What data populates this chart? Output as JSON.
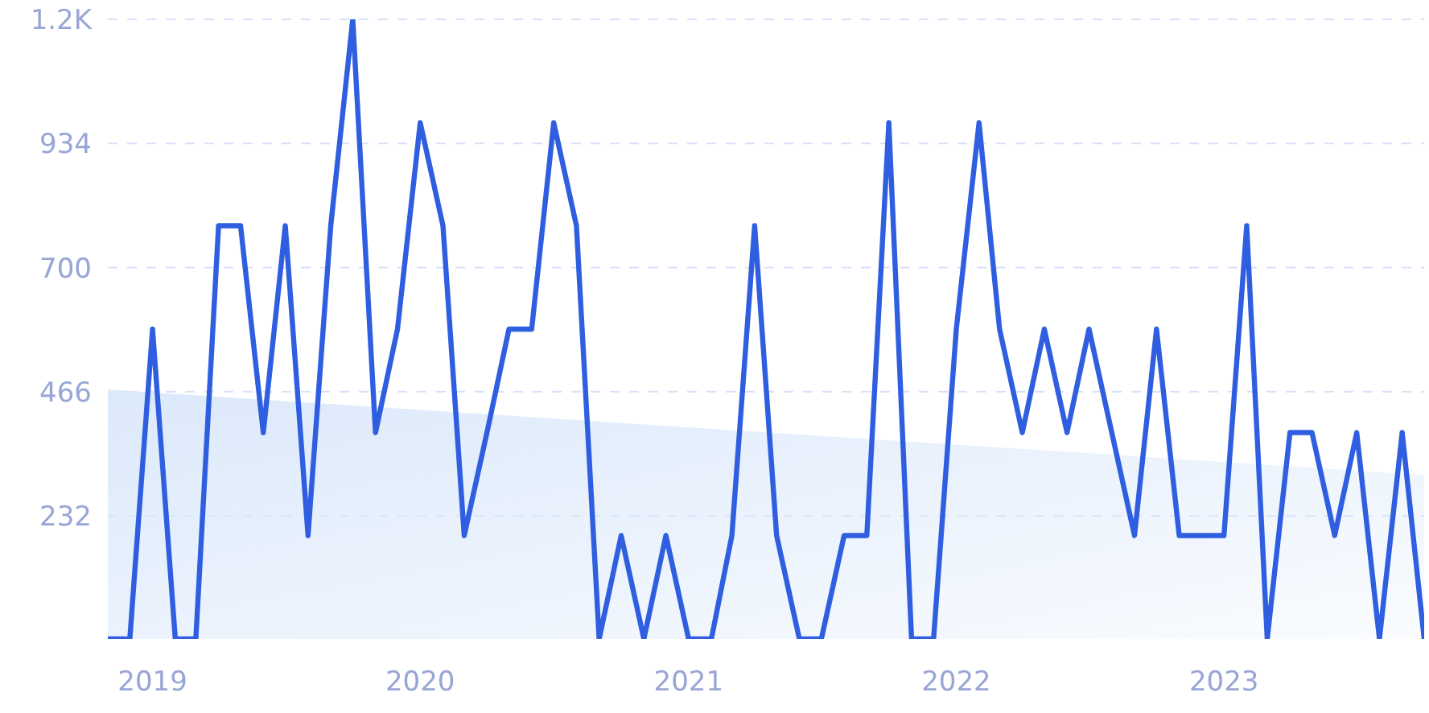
{
  "chart_data": {
    "type": "line",
    "x": [
      "2018-11",
      "2018-12",
      "2019-01",
      "2019-02",
      "2019-03",
      "2019-04",
      "2019-05",
      "2019-06",
      "2019-07",
      "2019-08",
      "2019-09",
      "2019-10",
      "2019-11",
      "2019-12",
      "2020-01",
      "2020-02",
      "2020-03",
      "2020-04",
      "2020-05",
      "2020-06",
      "2020-07",
      "2020-08",
      "2020-09",
      "2020-10",
      "2020-11",
      "2020-12",
      "2021-01",
      "2021-02",
      "2021-03",
      "2021-04",
      "2021-05",
      "2021-06",
      "2021-07",
      "2021-08",
      "2021-09",
      "2021-10",
      "2021-11",
      "2021-12",
      "2022-01",
      "2022-02",
      "2022-03",
      "2022-04",
      "2022-05",
      "2022-06",
      "2022-07",
      "2022-08",
      "2022-09",
      "2022-10",
      "2022-11",
      "2022-12",
      "2023-01",
      "2023-02",
      "2023-03",
      "2023-04",
      "2023-05",
      "2023-06",
      "2023-07",
      "2023-08",
      "2023-09",
      "2023-10"
    ],
    "series": [
      {
        "color": "#2f5fe0",
        "values": [
          0,
          0,
          584,
          0,
          0,
          779,
          779,
          389,
          779,
          195,
          779,
          1168,
          389,
          584,
          973,
          779,
          195,
          389,
          584,
          584,
          973,
          779,
          0,
          195,
          0,
          195,
          0,
          0,
          195,
          779,
          195,
          0,
          0,
          195,
          195,
          973,
          0,
          0,
          584,
          973,
          584,
          389,
          584,
          389,
          584,
          389,
          195,
          584,
          195,
          195,
          195,
          779,
          0,
          389,
          389,
          195,
          389,
          0,
          389,
          0
        ]
      },
      {
        "type": "area",
        "color": "#dce9fb",
        "x": [
          "2018-11",
          "2023-10"
        ],
        "values": [
          470,
          309
        ]
      }
    ],
    "xlim": [
      "2018-11",
      "2023-10"
    ],
    "xticks": [
      {
        "value": "2019-01",
        "label": "2019"
      },
      {
        "value": "2020-01",
        "label": "2020"
      },
      {
        "value": "2021-01",
        "label": "2021"
      },
      {
        "value": "2022-01",
        "label": "2022"
      },
      {
        "value": "2023-01",
        "label": "2023"
      }
    ],
    "ylim": [
      0,
      1168
    ],
    "yticks": [
      232,
      466,
      700,
      934,
      {
        "value": 1168,
        "label": "1.2K"
      }
    ],
    "grid": "y",
    "marker": "none",
    "line_style": "solid"
  }
}
